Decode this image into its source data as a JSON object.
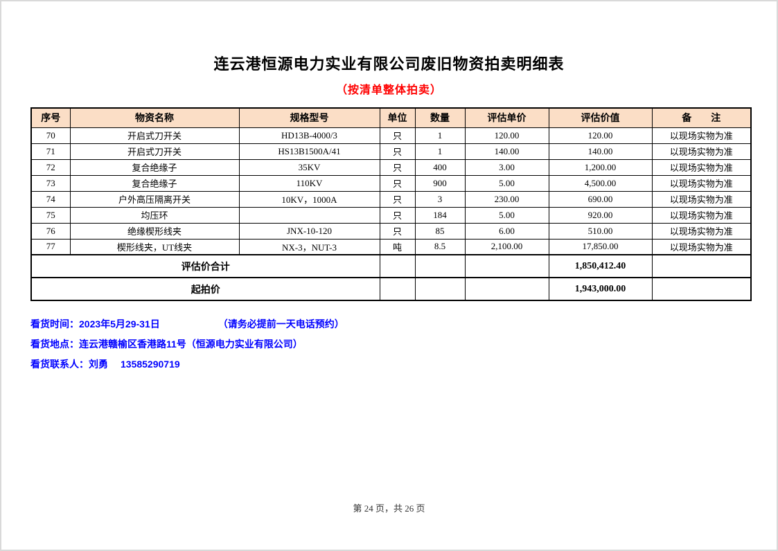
{
  "page": {
    "title": "连云港恒源电力实业有限公司废旧物资拍卖明细表",
    "subtitle": "（按清单整体拍卖）",
    "footer": "第 24 页，共 26 页"
  },
  "colors": {
    "header_bg": "#fbdec6",
    "subtitle_red": "#ff0000",
    "info_blue": "#0000ff",
    "table_border": "#000000"
  },
  "table": {
    "headers": [
      "序号",
      "物资名称",
      "规格型号",
      "单位",
      "数量",
      "评估单价",
      "评估价值",
      "备　　注"
    ],
    "rows": [
      [
        "70",
        "开启式刀开关",
        "HD13B-4000/3",
        "只",
        "1",
        "120.00",
        "120.00",
        "以现场实物为准"
      ],
      [
        "71",
        "开启式刀开关",
        "HS13B1500A/41",
        "只",
        "1",
        "140.00",
        "140.00",
        "以现场实物为准"
      ],
      [
        "72",
        "复合绝缘子",
        "35KV",
        "只",
        "400",
        "3.00",
        "1,200.00",
        "以现场实物为准"
      ],
      [
        "73",
        "复合绝缘子",
        "110KV",
        "只",
        "900",
        "5.00",
        "4,500.00",
        "以现场实物为准"
      ],
      [
        "74",
        "户外高压隔离开关",
        "10KV，1000A",
        "只",
        "3",
        "230.00",
        "690.00",
        "以现场实物为准"
      ],
      [
        "75",
        "均压环",
        "",
        "只",
        "184",
        "5.00",
        "920.00",
        "以现场实物为准"
      ],
      [
        "76",
        "绝缘楔形线夹",
        "JNX-10-120",
        "只",
        "85",
        "6.00",
        "510.00",
        "以现场实物为准"
      ],
      [
        "77",
        "楔形线夹，UT线夹",
        "NX-3，NUT-3",
        "吨",
        "8.5",
        "2,100.00",
        "17,850.00",
        "以现场实物为准"
      ]
    ],
    "summary": [
      {
        "label": "评估价合计",
        "value": "1,850,412.40"
      },
      {
        "label": "起拍价",
        "value": "1,943,000.00"
      }
    ]
  },
  "info": {
    "time_label": "看货时间：",
    "time_value": "2023年5月29-31日",
    "time_note": "（请务必提前一天电话预约）",
    "location_label": "看货地点：",
    "location_value": "连云港赣榆区香港路11号（恒源电力实业有限公司）",
    "contact_label": "看货联系人：",
    "contact_name": "刘勇",
    "contact_phone": "13585290719"
  }
}
